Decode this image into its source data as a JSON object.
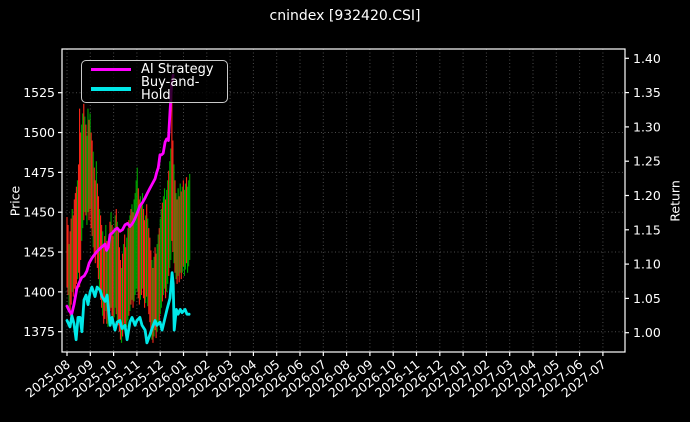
{
  "figure": {
    "background": "#000000",
    "text_color": "#ffffff",
    "frame_color": "#ffffff",
    "grid_color": "#4a4a4a"
  },
  "chart_data": {
    "type": "mixed",
    "subtype": "high-low price bars with two overlay lines",
    "title": "cnindex [932420.CSI]",
    "left_axis": {
      "label": "Price",
      "ticks": [
        1375,
        1400,
        1425,
        1450,
        1475,
        1500,
        1525
      ],
      "range": [
        1362,
        1552
      ]
    },
    "right_axis": {
      "label": "Return",
      "ticks": [
        "1.00",
        "1.05",
        "1.10",
        "1.15",
        "1.20",
        "1.25",
        "1.30",
        "1.35",
        "1.40"
      ],
      "range": [
        0.97,
        1.41
      ]
    },
    "x_axis": {
      "unit": "months-from-2025-08",
      "tick_labels": [
        "2025-08",
        "2025-09",
        "2025-10",
        "2025-11",
        "2025-12",
        "2026-01",
        "2026-02",
        "2026-03",
        "2026-04",
        "2026-05",
        "2026-06",
        "2026-07",
        "2026-08",
        "2026-09",
        "2026-10",
        "2026-11",
        "2026-12",
        "2027-01",
        "2027-02",
        "2027-03",
        "2027-04",
        "2027-05",
        "2027-06",
        "2027-07"
      ],
      "label_rotation_deg": -38,
      "grid": true
    },
    "grid": {
      "style": "dotted",
      "on": true
    },
    "legend": {
      "position": "upper-left",
      "entries": [
        {
          "label": "AI Strategy",
          "color": "#ff00ff"
        },
        {
          "label": "Buy-and-Hold",
          "color": "#00e8e8"
        }
      ]
    },
    "price_bars": {
      "up_color": "#00a000",
      "down_color": "#f52519",
      "bars": [
        [
          0.0,
          1403,
          1447,
          "r"
        ],
        [
          0.045,
          1398,
          1442,
          "r"
        ],
        [
          0.09,
          1390,
          1430,
          "g"
        ],
        [
          0.135,
          1385,
          1438,
          "r"
        ],
        [
          0.18,
          1392,
          1446,
          "r"
        ],
        [
          0.225,
          1400,
          1452,
          "g"
        ],
        [
          0.27,
          1397,
          1448,
          "r"
        ],
        [
          0.315,
          1402,
          1458,
          "r"
        ],
        [
          0.36,
          1400,
          1462,
          "r"
        ],
        [
          0.405,
          1405,
          1466,
          "r"
        ],
        [
          0.45,
          1408,
          1470,
          "g"
        ],
        [
          0.495,
          1412,
          1480,
          "r"
        ],
        [
          0.54,
          1403,
          1515,
          "r"
        ],
        [
          0.585,
          1420,
          1500,
          "r"
        ],
        [
          0.63,
          1432,
          1505,
          "g"
        ],
        [
          0.675,
          1440,
          1512,
          "g"
        ],
        [
          0.72,
          1445,
          1518,
          "r"
        ],
        [
          0.765,
          1450,
          1510,
          "g"
        ],
        [
          0.81,
          1448,
          1505,
          "r"
        ],
        [
          0.855,
          1442,
          1498,
          "g"
        ],
        [
          0.9,
          1450,
          1515,
          "g"
        ],
        [
          0.945,
          1445,
          1508,
          "r"
        ],
        [
          0.99,
          1452,
          1512,
          "g"
        ],
        [
          1.035,
          1440,
          1500,
          "r"
        ],
        [
          1.08,
          1435,
          1495,
          "r"
        ],
        [
          1.125,
          1428,
          1488,
          "g"
        ],
        [
          1.17,
          1422,
          1478,
          "r"
        ],
        [
          1.215,
          1418,
          1470,
          "r"
        ],
        [
          1.26,
          1425,
          1482,
          "g"
        ],
        [
          1.305,
          1415,
          1468,
          "r"
        ],
        [
          1.35,
          1408,
          1460,
          "r"
        ],
        [
          1.395,
          1400,
          1452,
          "g"
        ],
        [
          1.44,
          1395,
          1448,
          "r"
        ],
        [
          1.485,
          1390,
          1442,
          "r"
        ],
        [
          1.53,
          1385,
          1438,
          "g"
        ],
        [
          1.575,
          1380,
          1430,
          "r"
        ],
        [
          1.62,
          1383,
          1435,
          "r"
        ],
        [
          1.665,
          1388,
          1442,
          "g"
        ],
        [
          1.71,
          1380,
          1432,
          "r"
        ],
        [
          1.755,
          1378,
          1428,
          "g"
        ],
        [
          1.8,
          1382,
          1436,
          "g"
        ],
        [
          1.845,
          1388,
          1444,
          "r"
        ],
        [
          1.89,
          1390,
          1450,
          "g"
        ],
        [
          1.935,
          1385,
          1442,
          "r"
        ],
        [
          1.98,
          1380,
          1435,
          "r"
        ],
        [
          2.025,
          1384,
          1440,
          "g"
        ],
        [
          2.07,
          1390,
          1448,
          "g"
        ],
        [
          2.115,
          1386,
          1452,
          "r"
        ],
        [
          2.16,
          1382,
          1444,
          "g"
        ],
        [
          2.205,
          1379,
          1438,
          "r"
        ],
        [
          2.25,
          1375,
          1428,
          "r"
        ],
        [
          2.295,
          1370,
          1420,
          "r"
        ],
        [
          2.34,
          1368,
          1415,
          "g"
        ],
        [
          2.385,
          1372,
          1424,
          "r"
        ],
        [
          2.43,
          1376,
          1430,
          "g"
        ],
        [
          2.475,
          1380,
          1436,
          "r"
        ],
        [
          2.52,
          1374,
          1428,
          "r"
        ],
        [
          2.565,
          1378,
          1434,
          "g"
        ],
        [
          2.61,
          1382,
          1440,
          "g"
        ],
        [
          2.655,
          1385,
          1445,
          "r"
        ],
        [
          2.7,
          1388,
          1448,
          "g"
        ],
        [
          2.745,
          1392,
          1452,
          "r"
        ],
        [
          2.79,
          1395,
          1455,
          "g"
        ],
        [
          2.835,
          1390,
          1450,
          "r"
        ],
        [
          2.88,
          1394,
          1458,
          "g"
        ],
        [
          2.925,
          1398,
          1462,
          "g"
        ],
        [
          2.97,
          1402,
          1470,
          "g"
        ],
        [
          3.015,
          1400,
          1478,
          "g"
        ],
        [
          3.06,
          1396,
          1465,
          "r"
        ],
        [
          3.105,
          1392,
          1458,
          "r"
        ],
        [
          3.15,
          1395,
          1460,
          "g"
        ],
        [
          3.195,
          1398,
          1455,
          "r"
        ],
        [
          3.24,
          1402,
          1462,
          "g"
        ],
        [
          3.285,
          1396,
          1452,
          "r"
        ],
        [
          3.33,
          1390,
          1445,
          "r"
        ],
        [
          3.375,
          1393,
          1448,
          "g"
        ],
        [
          3.42,
          1397,
          1455,
          "r"
        ],
        [
          3.465,
          1391,
          1446,
          "g"
        ],
        [
          3.51,
          1386,
          1440,
          "r"
        ],
        [
          3.555,
          1381,
          1434,
          "r"
        ],
        [
          3.6,
          1375,
          1426,
          "r"
        ],
        [
          3.645,
          1370,
          1420,
          "g"
        ],
        [
          3.69,
          1368,
          1415,
          "r"
        ],
        [
          3.735,
          1372,
          1422,
          "g"
        ],
        [
          3.78,
          1376,
          1428,
          "r"
        ],
        [
          3.825,
          1371,
          1424,
          "r"
        ],
        [
          3.87,
          1375,
          1430,
          "g"
        ],
        [
          3.915,
          1379,
          1436,
          "g"
        ],
        [
          3.96,
          1382,
          1440,
          "r"
        ],
        [
          4.005,
          1386,
          1446,
          "g"
        ],
        [
          4.05,
          1390,
          1452,
          "g"
        ],
        [
          4.095,
          1394,
          1456,
          "r"
        ],
        [
          4.14,
          1398,
          1460,
          "g"
        ],
        [
          4.185,
          1402,
          1465,
          "g"
        ],
        [
          4.23,
          1396,
          1458,
          "r"
        ],
        [
          4.275,
          1400,
          1464,
          "g"
        ],
        [
          4.32,
          1405,
          1470,
          "g"
        ],
        [
          4.365,
          1410,
          1476,
          "r"
        ],
        [
          4.41,
          1415,
          1482,
          "g"
        ],
        [
          4.455,
          1420,
          1490,
          "g"
        ],
        [
          4.5,
          1432,
          1528,
          "r"
        ],
        [
          4.545,
          1425,
          1495,
          "r"
        ],
        [
          4.59,
          1418,
          1480,
          "g"
        ],
        [
          4.635,
          1412,
          1470,
          "r"
        ],
        [
          4.68,
          1408,
          1462,
          "g"
        ],
        [
          4.725,
          1405,
          1458,
          "r"
        ],
        [
          4.77,
          1410,
          1465,
          "g"
        ],
        [
          4.815,
          1406,
          1460,
          "r"
        ],
        [
          4.86,
          1412,
          1468,
          "g"
        ],
        [
          4.905,
          1408,
          1463,
          "r"
        ],
        [
          4.95,
          1412,
          1466,
          "g"
        ],
        [
          4.995,
          1416,
          1470,
          "r"
        ],
        [
          5.04,
          1410,
          1464,
          "g"
        ],
        [
          5.085,
          1414,
          1468,
          "g"
        ],
        [
          5.13,
          1418,
          1472,
          "r"
        ],
        [
          5.175,
          1412,
          1466,
          "g"
        ],
        [
          5.22,
          1416,
          1470,
          "g"
        ],
        [
          5.265,
          1420,
          1474,
          "g"
        ]
      ]
    },
    "series": [
      {
        "name": "AI Strategy",
        "color": "#ff00ff",
        "width": 2.8,
        "points": [
          [
            0.0,
            1391
          ],
          [
            0.1,
            1388
          ],
          [
            0.2,
            1386
          ],
          [
            0.3,
            1392
          ],
          [
            0.42,
            1402
          ],
          [
            0.5,
            1405
          ],
          [
            0.63,
            1409
          ],
          [
            0.74,
            1410
          ],
          [
            0.85,
            1413
          ],
          [
            0.95,
            1418
          ],
          [
            1.06,
            1421
          ],
          [
            1.16,
            1423
          ],
          [
            1.27,
            1425
          ],
          [
            1.4,
            1427
          ],
          [
            1.56,
            1429
          ],
          [
            1.63,
            1430
          ],
          [
            1.7,
            1426
          ],
          [
            1.77,
            1428
          ],
          [
            1.85,
            1436
          ],
          [
            1.95,
            1437
          ],
          [
            2.06,
            1439
          ],
          [
            2.16,
            1440
          ],
          [
            2.27,
            1438
          ],
          [
            2.38,
            1439
          ],
          [
            2.49,
            1442
          ],
          [
            2.6,
            1443
          ],
          [
            2.7,
            1441
          ],
          [
            2.81,
            1443
          ],
          [
            2.92,
            1446
          ],
          [
            3.03,
            1450
          ],
          [
            3.13,
            1454
          ],
          [
            3.24,
            1456
          ],
          [
            3.35,
            1459
          ],
          [
            3.45,
            1462
          ],
          [
            3.56,
            1465
          ],
          [
            3.67,
            1468
          ],
          [
            3.78,
            1471
          ],
          [
            3.85,
            1475
          ],
          [
            3.92,
            1478
          ],
          [
            3.99,
            1486
          ],
          [
            4.06,
            1486
          ],
          [
            4.13,
            1487
          ],
          [
            4.21,
            1494
          ],
          [
            4.28,
            1496
          ],
          [
            4.35,
            1495
          ],
          [
            4.42,
            1513
          ],
          [
            4.45,
            1520
          ],
          [
            4.49,
            1530
          ],
          [
            4.56,
            1536
          ]
        ]
      },
      {
        "name": "Buy-and-Hold",
        "color": "#00e8e8",
        "width": 2.8,
        "points": [
          [
            0.0,
            1382
          ],
          [
            0.13,
            1378
          ],
          [
            0.21,
            1385
          ],
          [
            0.3,
            1380
          ],
          [
            0.39,
            1370
          ],
          [
            0.47,
            1384
          ],
          [
            0.56,
            1384
          ],
          [
            0.64,
            1375
          ],
          [
            0.73,
            1395
          ],
          [
            0.82,
            1398
          ],
          [
            0.9,
            1392
          ],
          [
            0.99,
            1400
          ],
          [
            1.07,
            1403
          ],
          [
            1.2,
            1397
          ],
          [
            1.29,
            1403
          ],
          [
            1.42,
            1401
          ],
          [
            1.5,
            1397
          ],
          [
            1.63,
            1394
          ],
          [
            1.72,
            1398
          ],
          [
            1.85,
            1379
          ],
          [
            1.93,
            1384
          ],
          [
            2.06,
            1376
          ],
          [
            2.15,
            1381
          ],
          [
            2.27,
            1382
          ],
          [
            2.36,
            1377
          ],
          [
            2.49,
            1379
          ],
          [
            2.58,
            1370
          ],
          [
            2.7,
            1381
          ],
          [
            2.79,
            1384
          ],
          [
            2.92,
            1379
          ],
          [
            3.0,
            1382
          ],
          [
            3.13,
            1384
          ],
          [
            3.22,
            1379
          ],
          [
            3.35,
            1376
          ],
          [
            3.43,
            1368
          ],
          [
            3.56,
            1373
          ],
          [
            3.65,
            1377
          ],
          [
            3.78,
            1382
          ],
          [
            3.86,
            1379
          ],
          [
            3.99,
            1381
          ],
          [
            4.08,
            1376
          ],
          [
            4.21,
            1384
          ],
          [
            4.29,
            1389
          ],
          [
            4.42,
            1396
          ],
          [
            4.51,
            1412
          ],
          [
            4.56,
            1405
          ],
          [
            4.6,
            1376
          ],
          [
            4.69,
            1389
          ],
          [
            4.77,
            1386
          ],
          [
            4.86,
            1389
          ],
          [
            4.94,
            1387
          ],
          [
            5.07,
            1389
          ],
          [
            5.15,
            1386
          ],
          [
            5.24,
            1386
          ]
        ]
      }
    ]
  }
}
